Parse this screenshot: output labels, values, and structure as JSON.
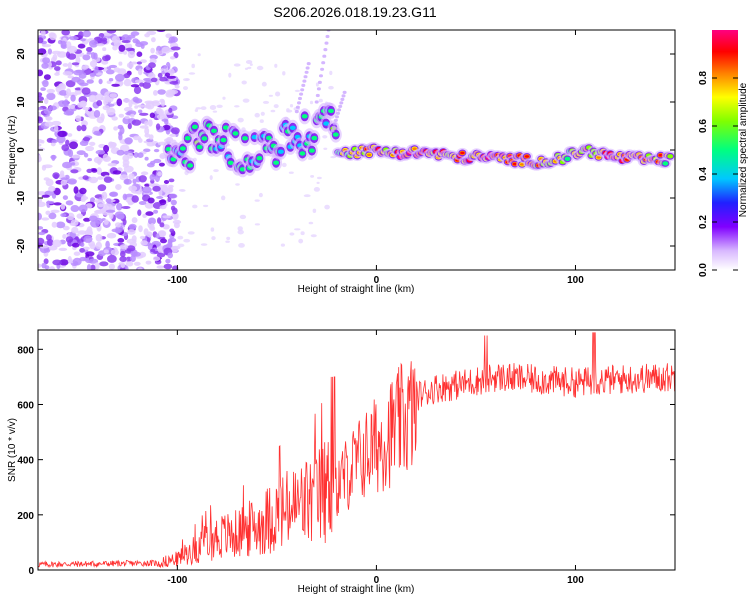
{
  "title": "S206.2026.018.19.23.G11",
  "chart_data": [
    {
      "type": "heatmap",
      "name": "spectrogram",
      "xlabel": "Height of straight line (km)",
      "ylabel": "Frequency (Hz)",
      "xlim": [
        -170,
        150
      ],
      "ylim": [
        -25,
        25
      ],
      "xticks": [
        -100,
        0,
        100
      ],
      "yticks": [
        -20,
        -10,
        0,
        10,
        20
      ],
      "colorbar": {
        "label": "Normalized spectral amplitude",
        "range": [
          0,
          1
        ],
        "ticks": [
          0.0,
          0.2,
          0.4,
          0.6,
          0.8
        ]
      },
      "ridge": [
        {
          "x": -105,
          "y": -1.5,
          "a": 0.45
        },
        {
          "x": -97,
          "y": -0.5,
          "a": 0.4
        },
        {
          "x": -90,
          "y": 1.5,
          "a": 0.5
        },
        {
          "x": -83,
          "y": 3.0,
          "a": 0.45
        },
        {
          "x": -75,
          "y": 1.5,
          "a": 0.4
        },
        {
          "x": -65,
          "y": -1.0,
          "a": 0.4
        },
        {
          "x": -58,
          "y": 0.5,
          "a": 0.4
        },
        {
          "x": -48,
          "y": 1.5,
          "a": 0.4
        },
        {
          "x": -40,
          "y": 2.5,
          "a": 0.4
        },
        {
          "x": -30,
          "y": 4.0,
          "a": 0.45
        },
        {
          "x": -25,
          "y": 8.5,
          "a": 0.4
        },
        {
          "x": -20,
          "y": 0.5,
          "a": 0.55
        },
        {
          "x": -12,
          "y": -0.5,
          "a": 0.6
        },
        {
          "x": -5,
          "y": 0.0,
          "a": 0.7
        },
        {
          "x": 5,
          "y": -0.5,
          "a": 0.75
        },
        {
          "x": 15,
          "y": -0.5,
          "a": 0.85
        },
        {
          "x": 25,
          "y": -0.5,
          "a": 0.8
        },
        {
          "x": 40,
          "y": -1.5,
          "a": 0.75
        },
        {
          "x": 55,
          "y": -1.5,
          "a": 0.85
        },
        {
          "x": 70,
          "y": -2.0,
          "a": 0.75
        },
        {
          "x": 85,
          "y": -2.5,
          "a": 0.7
        },
        {
          "x": 95,
          "y": -1.5,
          "a": 0.6
        },
        {
          "x": 105,
          "y": 0.0,
          "a": 0.65
        },
        {
          "x": 120,
          "y": -1.5,
          "a": 0.85
        },
        {
          "x": 135,
          "y": -2.0,
          "a": 0.8
        },
        {
          "x": 148,
          "y": -2.0,
          "a": 0.6
        }
      ]
    },
    {
      "type": "line",
      "name": "snr",
      "xlabel": "Height of straight line (km)",
      "ylabel": "SNR (10 * v/v)",
      "xlim": [
        -170,
        150
      ],
      "ylim": [
        0,
        870
      ],
      "xticks": [
        -100,
        0,
        100
      ],
      "yticks": [
        0,
        200,
        400,
        600,
        800
      ],
      "color": "#ff3030",
      "envelope": {
        "x": [
          -170,
          -110,
          -100,
          -90,
          -80,
          -70,
          -60,
          -50,
          -40,
          -30,
          -25,
          -20,
          -10,
          0,
          10,
          20,
          30,
          40,
          60,
          80,
          100,
          120,
          150
        ],
        "y": [
          20,
          25,
          40,
          80,
          120,
          130,
          160,
          200,
          230,
          260,
          290,
          330,
          420,
          490,
          560,
          630,
          660,
          670,
          700,
          690,
          680,
          690,
          700
        ]
      }
    }
  ]
}
